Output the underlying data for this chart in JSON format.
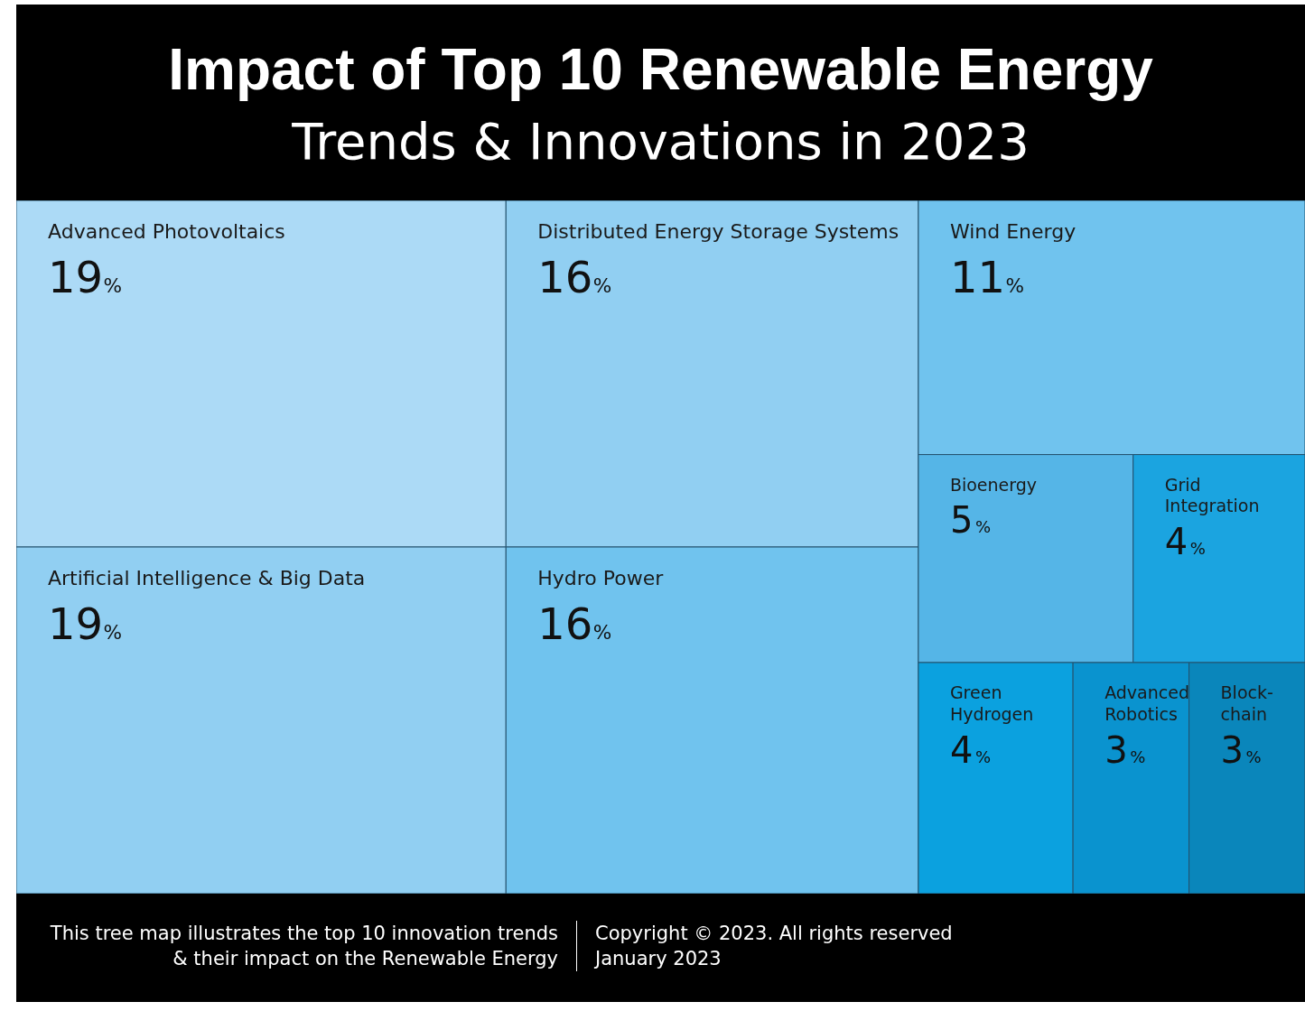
{
  "chart_data": {
    "type": "other",
    "title": "Impact of Top 10 Renewable Energy",
    "subtitle": "Trends & Innovations in 2023",
    "categories": [
      "Advanced Photovoltaics",
      "Artificial Intelligence & Big Data",
      "Distributed Energy Storage Systems",
      "Hydro Power",
      "Wind Energy",
      "Bioenergy",
      "Grid Integration",
      "Green Hydrogen",
      "Advanced Robotics",
      "Block-chain"
    ],
    "values": [
      19,
      19,
      16,
      16,
      11,
      5,
      4,
      4,
      3,
      3
    ],
    "value_labels": [
      "19%",
      "19%",
      "16%",
      "16%",
      "11%",
      "5%",
      "4%",
      "4%",
      "3%",
      "3%"
    ],
    "colors": [
      "#acdaf6",
      "#91cff2",
      "#91cff2",
      "#70c3ee",
      "#70c3ee",
      "#55b5e7",
      "#1ba4e0",
      "#0ba1df",
      "#0a93cf",
      "#0a86bb"
    ],
    "annotations": [
      "This tree map illustrates the top 10 innovation trends",
      "& their impact on the Renewable Energy",
      "Copyright © 2023. All rights reserved",
      "January 2023"
    ]
  }
}
